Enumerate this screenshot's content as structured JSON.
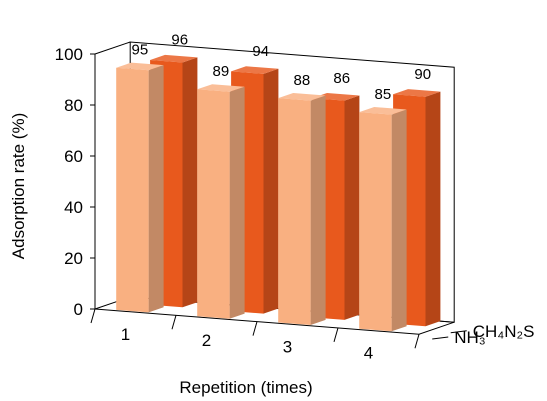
{
  "chart_data": {
    "type": "bar",
    "style": "3d-clustered-depth",
    "categories": [
      "1",
      "2",
      "3",
      "4"
    ],
    "series": [
      {
        "name": "NH₃",
        "values": [
          95,
          89,
          88,
          85
        ],
        "color": "#F9B081"
      },
      {
        "name": "CH₄N₂S",
        "values": [
          96,
          94,
          86,
          90
        ],
        "color": "#E8591D"
      }
    ],
    "xlabel": "Repetition (times)",
    "ylabel": "Adsorption rate (%)",
    "ylim": [
      0,
      100
    ],
    "yticks": [
      "0",
      "20",
      "40",
      "60",
      "80",
      "100"
    ],
    "grid": false,
    "legend": "depth-axis labels at right"
  }
}
